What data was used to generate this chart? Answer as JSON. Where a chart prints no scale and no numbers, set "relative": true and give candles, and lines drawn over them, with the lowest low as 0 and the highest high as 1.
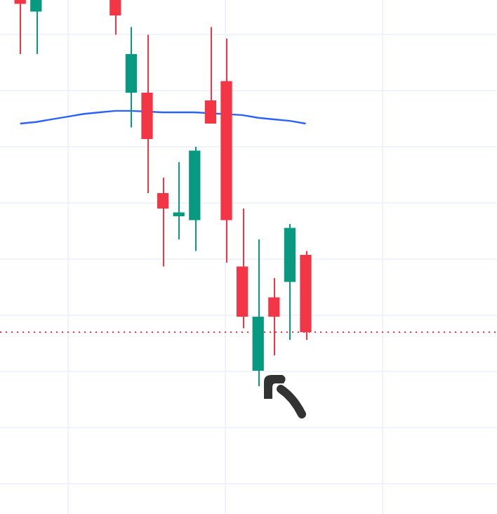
{
  "chart_data": {
    "type": "candlestick",
    "relative": true,
    "grid": true,
    "categories": [
      null,
      null,
      null,
      null,
      null,
      null,
      null,
      null,
      null,
      null,
      null,
      null,
      null,
      null,
      null,
      null,
      null,
      null,
      null
    ],
    "ohlc": [
      [
        1.0,
        1.0,
        0.86,
        0.99
      ],
      [
        0.97,
        1.0,
        0.86,
        1.0
      ],
      null,
      null,
      null,
      null,
      [
        1.0,
        1.0,
        0.91,
        0.96
      ],
      [
        0.76,
        0.93,
        0.67,
        0.86
      ],
      [
        0.76,
        0.91,
        0.5,
        0.64
      ],
      [
        0.5,
        0.54,
        0.31,
        0.46
      ],
      [
        0.44,
        0.58,
        0.38,
        0.45
      ],
      [
        0.43,
        0.62,
        0.35,
        0.61
      ],
      [
        0.74,
        0.93,
        0.68,
        0.68
      ],
      [
        0.79,
        0.9,
        0.32,
        0.43
      ],
      [
        0.31,
        0.46,
        0.15,
        0.18
      ],
      [
        0.04,
        0.38,
        0.0,
        0.18
      ],
      [
        0.23,
        0.28,
        0.08,
        0.18
      ],
      [
        0.27,
        0.42,
        0.12,
        0.41
      ],
      [
        0.34,
        0.35,
        0.12,
        0.14
      ]
    ],
    "colors": [
      "#f23645",
      "#089981",
      null,
      null,
      null,
      null,
      "#f23645",
      "#089981",
      "#f23645",
      "#f23645",
      "#089981",
      "#089981",
      "#f23645",
      "#f23645",
      "#f23645",
      "#089981",
      "#f23645",
      "#089981",
      "#f23645"
    ],
    "series": [
      {
        "type": "line",
        "color": "#2962ff",
        "values": [
          0.68,
          0.684,
          0.691,
          0.698,
          0.705,
          0.709,
          0.713,
          0.713,
          null,
          0.709,
          0.709,
          0.709,
          null,
          null,
          0.702,
          0.695,
          0.691,
          0.687,
          0.68
        ]
      }
    ],
    "ref_lines": [
      {
        "axis": "y",
        "value": 0.14,
        "color": "#f23645",
        "line_style": "dotted"
      }
    ]
  }
}
